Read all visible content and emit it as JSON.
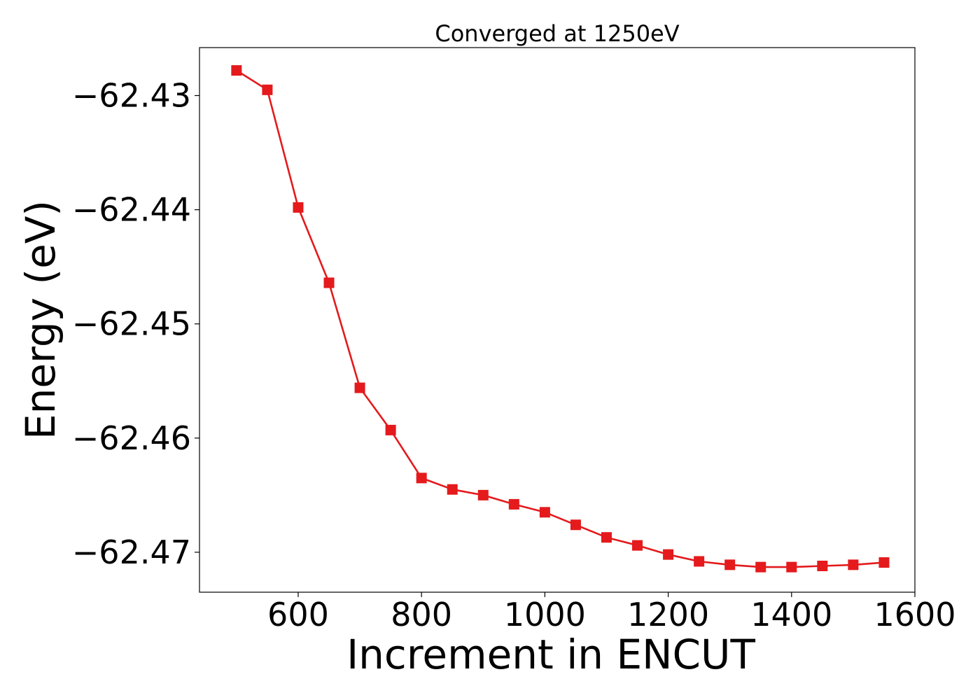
{
  "chart_data": {
    "type": "line",
    "title": "Converged at 1250eV",
    "xlabel": "Increment in ENCUT",
    "ylabel": "Energy (eV)",
    "xlim": [
      440,
      1600
    ],
    "ylim": [
      -62.4735,
      -62.4258
    ],
    "xticks": [
      600,
      800,
      1000,
      1200,
      1400,
      1600
    ],
    "yticks": [
      -62.43,
      -62.44,
      -62.45,
      -62.46,
      -62.47
    ],
    "ytick_labels": [
      "−62.43",
      "−62.44",
      "−62.45",
      "−62.46",
      "−62.47"
    ],
    "grid": false,
    "series": [
      {
        "color": "#e41a1c",
        "marker": "square",
        "x": [
          500,
          550,
          600,
          650,
          700,
          750,
          800,
          850,
          900,
          950,
          1000,
          1050,
          1100,
          1150,
          1200,
          1250,
          1300,
          1350,
          1400,
          1450,
          1500,
          1550
        ],
        "y": [
          -62.4278,
          -62.4295,
          -62.4398,
          -62.4464,
          -62.4556,
          -62.4593,
          -62.4635,
          -62.4645,
          -62.465,
          -62.4658,
          -62.4665,
          -62.4676,
          -62.4687,
          -62.4694,
          -62.4702,
          -62.4708,
          -62.4711,
          -62.4713,
          -62.4713,
          -62.4712,
          -62.4711,
          -62.4709
        ]
      }
    ]
  }
}
